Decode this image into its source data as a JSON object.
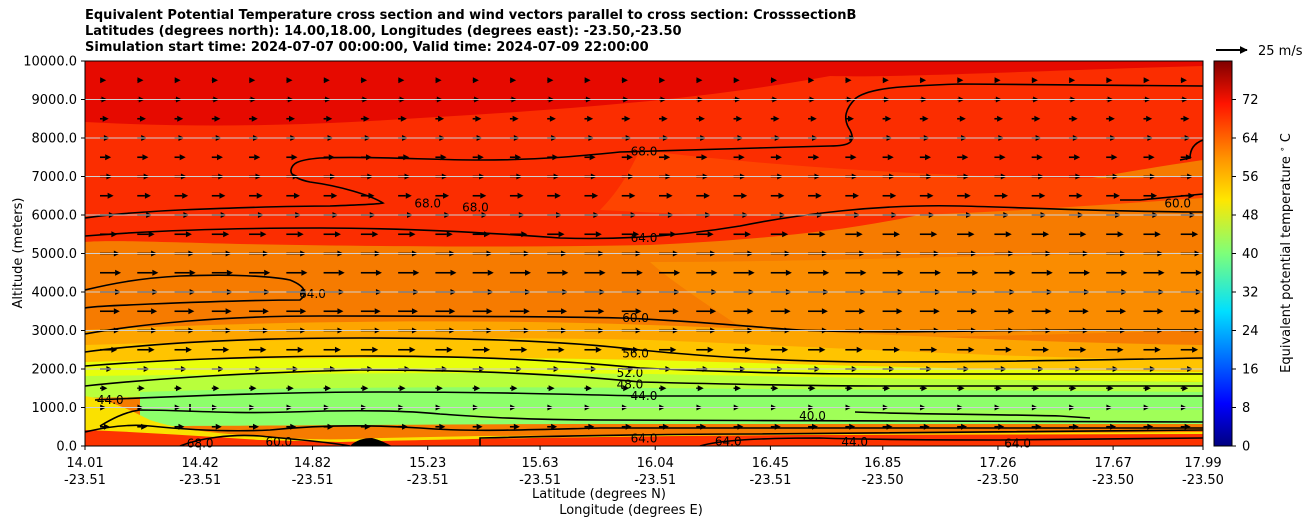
{
  "chart_data": {
    "type": "contour",
    "title_lines": [
      "Equivalent Potential Temperature cross section and wind vectors parallel to cross section: CrosssectionB",
      "Latitudes (degrees north): 14.00,18.00, Longitudes (degrees east): -23.50,-23.50",
      "Simulation start time: 2024-07-07 00:00:00, Valid time: 2024-07-09 22:00:00"
    ],
    "ylabel": "Altitude (meters)",
    "xlabel_lat": "Latitude (degrees N)",
    "xlabel_lon": "Longitude (degrees E)",
    "ylim": [
      0,
      10000
    ],
    "yticks": [
      "0.0",
      "1000.0",
      "2000.0",
      "3000.0",
      "4000.0",
      "5000.0",
      "6000.0",
      "7000.0",
      "8000.0",
      "9000.0",
      "10000.0"
    ],
    "xticks_lat": [
      "14.01",
      "14.42",
      "14.82",
      "15.23",
      "15.63",
      "16.04",
      "16.45",
      "16.85",
      "17.26",
      "17.67",
      "17.99"
    ],
    "xticks_lon": [
      "-23.51",
      "-23.51",
      "-23.51",
      "-23.51",
      "-23.51",
      "-23.51",
      "-23.51",
      "-23.50",
      "-23.50",
      "-23.50",
      "-23.50"
    ],
    "colorbar_label": "Equivalent potential temperature $^\\circ$ C",
    "colorbar_ticks": [
      "0",
      "8",
      "16",
      "24",
      "32",
      "40",
      "48",
      "56",
      "64",
      "72"
    ],
    "colorbar_range": [
      0,
      80
    ],
    "quiver_key_label": "25 m/s",
    "contour_levels": [
      {
        "label": "68.0",
        "lat": 16.0,
        "alt": 7650
      },
      {
        "label": "68.0",
        "lat": 15.23,
        "alt": 6300
      },
      {
        "label": "68.0",
        "lat": 15.4,
        "alt": 6200
      },
      {
        "label": "64.0",
        "lat": 16.0,
        "alt": 5400
      },
      {
        "label": "64.0",
        "lat": 14.82,
        "alt": 3950
      },
      {
        "label": "60.0",
        "lat": 17.9,
        "alt": 6300
      },
      {
        "label": "60.0",
        "lat": 15.97,
        "alt": 3320
      },
      {
        "label": "56.0",
        "lat": 15.97,
        "alt": 2400
      },
      {
        "label": "52.0",
        "lat": 15.95,
        "alt": 1900
      },
      {
        "label": "48.0",
        "lat": 15.95,
        "alt": 1600
      },
      {
        "label": "44.0",
        "lat": 16.0,
        "alt": 1300
      },
      {
        "label": "44.0",
        "lat": 14.1,
        "alt": 1200
      },
      {
        "label": "68.0",
        "lat": 14.42,
        "alt": 60
      },
      {
        "label": "60.0",
        "lat": 14.7,
        "alt": 100
      },
      {
        "label": "64.0",
        "lat": 16.0,
        "alt": 200
      },
      {
        "label": "64.0",
        "lat": 16.3,
        "alt": 120
      },
      {
        "label": "64.0",
        "lat": 17.33,
        "alt": 70
      },
      {
        "label": "40.0",
        "lat": 16.6,
        "alt": 780
      },
      {
        "label": "44.0",
        "lat": 16.75,
        "alt": 100
      }
    ],
    "wind_u_profile": [
      {
        "alt": 500,
        "u": 8
      },
      {
        "alt": 1000,
        "u": 5
      },
      {
        "alt": 1500,
        "u": 6
      },
      {
        "alt": 2000,
        "u": 10
      },
      {
        "alt": 2500,
        "u": 14
      },
      {
        "alt": 3000,
        "u": 16
      },
      {
        "alt": 3500,
        "u": 16
      },
      {
        "alt": 4000,
        "u": 17
      },
      {
        "alt": 4500,
        "u": 17
      },
      {
        "alt": 5000,
        "u": 16
      },
      {
        "alt": 5500,
        "u": 14
      },
      {
        "alt": 6000,
        "u": 12
      },
      {
        "alt": 6500,
        "u": 11
      },
      {
        "alt": 7000,
        "u": 10
      },
      {
        "alt": 7500,
        "u": 9
      },
      {
        "alt": 8000,
        "u": 8
      },
      {
        "alt": 8500,
        "u": 7
      },
      {
        "alt": 9000,
        "u": 6
      },
      {
        "alt": 9500,
        "u": 5
      }
    ]
  }
}
